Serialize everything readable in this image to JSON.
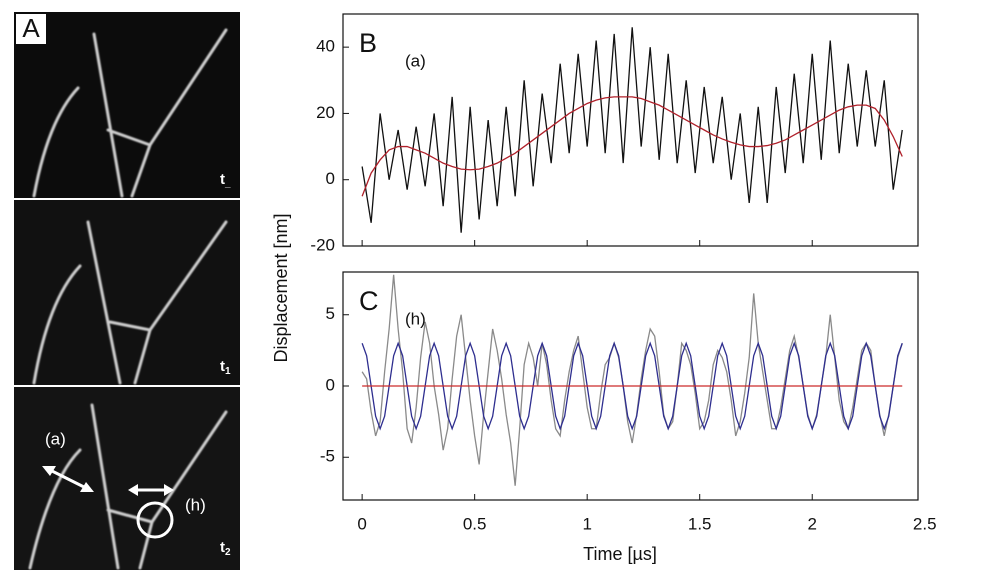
{
  "figure": {
    "label": "A",
    "frames": [
      {
        "t": "t",
        "sub": "_"
      },
      {
        "t": "t",
        "sub": "1"
      },
      {
        "t": "t",
        "sub": "2"
      }
    ],
    "annotations": [
      "(a)",
      "(h)"
    ]
  },
  "chart_data": [
    {
      "type": "line",
      "label": "B",
      "annotation": "(a)",
      "ylabel": "Displacement [nm]",
      "xtick_labels": false,
      "xlim": [
        -0.085,
        2.47
      ],
      "ylim": [
        -20,
        50
      ],
      "xticks": [
        0,
        0.5,
        1,
        1.5,
        2,
        2.5
      ],
      "yticks": [
        -20,
        0,
        20,
        40
      ],
      "x": [
        0,
        0.04,
        0.08,
        0.12,
        0.16,
        0.2,
        0.24,
        0.28,
        0.32,
        0.36,
        0.4,
        0.44,
        0.48,
        0.52,
        0.56,
        0.6,
        0.64,
        0.68,
        0.72,
        0.76,
        0.8,
        0.84,
        0.88,
        0.92,
        0.96,
        1,
        1.04,
        1.08,
        1.12,
        1.16,
        1.2,
        1.24,
        1.28,
        1.32,
        1.36,
        1.4,
        1.44,
        1.48,
        1.52,
        1.56,
        1.6,
        1.64,
        1.68,
        1.72,
        1.76,
        1.8,
        1.84,
        1.88,
        1.92,
        1.96,
        2,
        2.04,
        2.08,
        2.12,
        2.16,
        2.2,
        2.24,
        2.28,
        2.32,
        2.36,
        2.4
      ],
      "series": [
        {
          "color": "#111111",
          "values": [
            4,
            -13,
            20,
            0,
            15,
            -3,
            16,
            -2,
            20,
            -8,
            25,
            -16,
            22,
            -12,
            18,
            -8,
            22,
            -5,
            30,
            -2,
            26,
            5,
            35,
            8,
            38,
            10,
            42,
            8,
            44,
            5,
            46,
            10,
            40,
            6,
            38,
            5,
            30,
            2,
            28,
            5,
            25,
            0,
            20,
            -7,
            22,
            -7,
            28,
            2,
            32,
            5,
            38,
            6,
            42,
            8,
            35,
            10,
            33,
            10,
            30,
            -3,
            15
          ]
        },
        {
          "color": "#b0202a",
          "values": [
            -5,
            2,
            6,
            9,
            10,
            10,
            9,
            8,
            6.5,
            5,
            4,
            3.2,
            3,
            3.2,
            4,
            5,
            6.5,
            8,
            10,
            12,
            14,
            16,
            18,
            20,
            21.5,
            23,
            24,
            24.7,
            25,
            25,
            25,
            24.5,
            23.5,
            22.5,
            21,
            19.5,
            18,
            16.5,
            15,
            13.5,
            12.3,
            11.3,
            10.5,
            10,
            10,
            10.3,
            11,
            12,
            13.5,
            15,
            16.5,
            18,
            19.5,
            21,
            22,
            22.5,
            22.5,
            21.5,
            18,
            13,
            7
          ]
        }
      ]
    },
    {
      "type": "line",
      "label": "C",
      "annotation": "(h)",
      "xlabel": "Time [µs]",
      "xlim": [
        -0.085,
        2.47
      ],
      "ylim": [
        -8,
        8
      ],
      "xticks": [
        0,
        0.5,
        1,
        1.5,
        2,
        2.5
      ],
      "yticks": [
        -5,
        0,
        5
      ],
      "x": [
        0,
        0.02,
        0.04,
        0.06,
        0.08,
        0.1,
        0.12,
        0.14,
        0.16,
        0.18,
        0.2,
        0.22,
        0.24,
        0.26,
        0.28,
        0.3,
        0.32,
        0.34,
        0.36,
        0.38,
        0.4,
        0.42,
        0.44,
        0.46,
        0.48,
        0.5,
        0.52,
        0.54,
        0.56,
        0.58,
        0.6,
        0.62,
        0.64,
        0.66,
        0.68,
        0.7,
        0.72,
        0.74,
        0.76,
        0.78,
        0.8,
        0.82,
        0.84,
        0.86,
        0.88,
        0.9,
        0.92,
        0.94,
        0.96,
        0.98,
        1,
        1.02,
        1.04,
        1.06,
        1.08,
        1.1,
        1.12,
        1.14,
        1.16,
        1.18,
        1.2,
        1.22,
        1.24,
        1.26,
        1.28,
        1.3,
        1.32,
        1.34,
        1.36,
        1.38,
        1.4,
        1.42,
        1.44,
        1.46,
        1.48,
        1.5,
        1.52,
        1.54,
        1.56,
        1.58,
        1.6,
        1.62,
        1.64,
        1.66,
        1.68,
        1.7,
        1.72,
        1.74,
        1.76,
        1.78,
        1.8,
        1.82,
        1.84,
        1.86,
        1.88,
        1.9,
        1.92,
        1.94,
        1.96,
        1.98,
        2,
        2.02,
        2.04,
        2.06,
        2.08,
        2.1,
        2.12,
        2.14,
        2.16,
        2.18,
        2.2,
        2.22,
        2.24,
        2.26,
        2.28,
        2.3,
        2.32,
        2.34,
        2.36,
        2.38,
        2.4
      ],
      "series": [
        {
          "color": "#8a8a8a",
          "values": [
            1,
            0.5,
            -1.8,
            -3.5,
            -2.5,
            1,
            4,
            7.8,
            4,
            1,
            -3,
            -4,
            -1.5,
            2,
            4.5,
            3,
            0,
            -2,
            -4.5,
            -3,
            0.5,
            3.5,
            5,
            2,
            -1,
            -3.5,
            -5.5,
            -2,
            1,
            4,
            2.5,
            0.5,
            -2,
            -4,
            -7,
            -3,
            1.5,
            3,
            2,
            0,
            3,
            1.5,
            -1,
            -3,
            -3.5,
            -1,
            1,
            2.5,
            3.5,
            1,
            -1.5,
            -3,
            -3,
            -0.5,
            1.5,
            2,
            3,
            2,
            0,
            -2.5,
            -4,
            -2,
            0.5,
            2.5,
            4,
            3.5,
            1,
            -2,
            -3,
            -2.5,
            0,
            3,
            2.5,
            1.5,
            -0.5,
            -3,
            -2.5,
            -1,
            1.5,
            2.5,
            2,
            1,
            -1,
            -3.5,
            -2.5,
            -0.5,
            2,
            6.5,
            3,
            1,
            -1,
            -3,
            -3,
            -1.5,
            0.5,
            2.5,
            3.5,
            2,
            0,
            -2,
            -3,
            -2,
            0,
            2,
            5,
            2,
            -1,
            -2.5,
            -3,
            -1.5,
            0.5,
            2.5,
            3,
            2.5,
            0,
            -2,
            -3.5,
            -2,
            0,
            2,
            3
          ]
        },
        {
          "color": "#2e2e8f",
          "values": [
            3,
            2.12,
            0,
            -2.12,
            -3,
            -2.12,
            0,
            2.12,
            3,
            2.12,
            0,
            -2.12,
            -3,
            -2.12,
            0,
            2.12,
            3,
            2.12,
            0,
            -2.12,
            -3,
            -2.12,
            0,
            2.12,
            3,
            2.12,
            0,
            -2.12,
            -3,
            -2.12,
            0,
            2.12,
            3,
            2.12,
            0,
            -2.12,
            -3,
            -2.12,
            0,
            2.12,
            3,
            2.12,
            0,
            -2.12,
            -3,
            -2.12,
            0,
            2.12,
            3,
            2.12,
            0,
            -2.12,
            -3,
            -2.12,
            0,
            2.12,
            3,
            2.12,
            0,
            -2.12,
            -3,
            -2.12,
            0,
            2.12,
            3,
            2.12,
            0,
            -2.12,
            -3,
            -2.12,
            0,
            2.12,
            3,
            2.12,
            0,
            -2.12,
            -3,
            -2.12,
            0,
            2.12,
            3,
            2.12,
            0,
            -2.12,
            -3,
            -2.12,
            0,
            2.12,
            3,
            2.12,
            0,
            -2.12,
            -3,
            -2.12,
            0,
            2.12,
            3,
            2.12,
            0,
            -2.12,
            -3,
            -2.12,
            0,
            2.12,
            3,
            2.12,
            0,
            -2.12,
            -3,
            -2.12,
            0,
            2.12,
            3,
            2.12,
            0,
            -2.12,
            -3,
            -2.12,
            0,
            2.12,
            3
          ]
        },
        {
          "color": "#cc2a2a",
          "x": [
            0,
            2.4
          ],
          "values": [
            0,
            0
          ]
        }
      ]
    }
  ]
}
